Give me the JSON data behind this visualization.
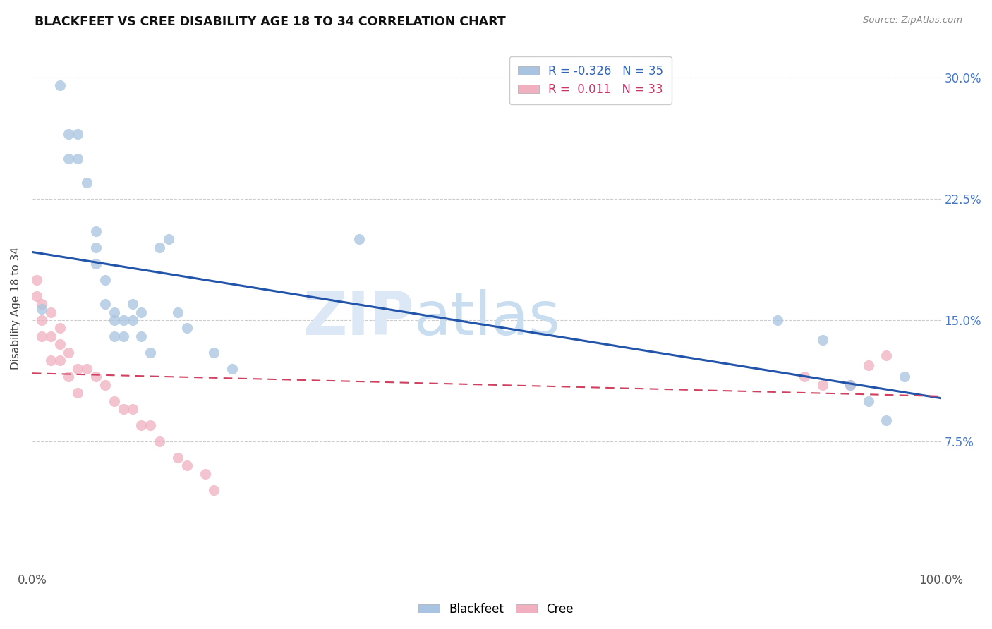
{
  "title": "BLACKFEET VS CREE DISABILITY AGE 18 TO 34 CORRELATION CHART",
  "source": "Source: ZipAtlas.com",
  "ylabel": "Disability Age 18 to 34",
  "xlim": [
    0.0,
    1.0
  ],
  "ylim": [
    -0.005,
    0.32
  ],
  "ytick_positions": [
    0.075,
    0.15,
    0.225,
    0.3
  ],
  "ytick_labels": [
    "7.5%",
    "15.0%",
    "22.5%",
    "30.0%"
  ],
  "blackfeet_R": -0.326,
  "blackfeet_N": 35,
  "cree_R": 0.011,
  "cree_N": 33,
  "blackfeet_color": "#a8c4e0",
  "blackfeet_line_color": "#2255aa",
  "cree_color": "#f0b0c0",
  "cree_line_color": "#d04060",
  "blackfeet_x": [
    0.01,
    0.03,
    0.04,
    0.04,
    0.05,
    0.05,
    0.06,
    0.07,
    0.07,
    0.07,
    0.08,
    0.08,
    0.09,
    0.09,
    0.09,
    0.1,
    0.1,
    0.11,
    0.11,
    0.12,
    0.12,
    0.13,
    0.14,
    0.15,
    0.16,
    0.17,
    0.2,
    0.22,
    0.36,
    0.82,
    0.87,
    0.9,
    0.92,
    0.94,
    0.96
  ],
  "blackfeet_y": [
    0.157,
    0.295,
    0.265,
    0.25,
    0.265,
    0.25,
    0.235,
    0.205,
    0.195,
    0.185,
    0.175,
    0.16,
    0.155,
    0.15,
    0.14,
    0.15,
    0.14,
    0.16,
    0.15,
    0.155,
    0.14,
    0.13,
    0.195,
    0.2,
    0.155,
    0.145,
    0.13,
    0.12,
    0.2,
    0.15,
    0.138,
    0.11,
    0.1,
    0.088,
    0.115
  ],
  "cree_x": [
    0.005,
    0.005,
    0.01,
    0.01,
    0.01,
    0.02,
    0.02,
    0.02,
    0.03,
    0.03,
    0.03,
    0.04,
    0.04,
    0.05,
    0.05,
    0.06,
    0.07,
    0.08,
    0.09,
    0.1,
    0.11,
    0.12,
    0.13,
    0.14,
    0.16,
    0.17,
    0.19,
    0.2,
    0.85,
    0.87,
    0.9,
    0.92,
    0.94
  ],
  "cree_y": [
    0.175,
    0.165,
    0.16,
    0.15,
    0.14,
    0.155,
    0.14,
    0.125,
    0.145,
    0.135,
    0.125,
    0.13,
    0.115,
    0.12,
    0.105,
    0.12,
    0.115,
    0.11,
    0.1,
    0.095,
    0.095,
    0.085,
    0.085,
    0.075,
    0.065,
    0.06,
    0.055,
    0.045,
    0.115,
    0.11,
    0.11,
    0.122,
    0.128
  ],
  "watermark_zip": "ZIP",
  "watermark_atlas": "atlas"
}
